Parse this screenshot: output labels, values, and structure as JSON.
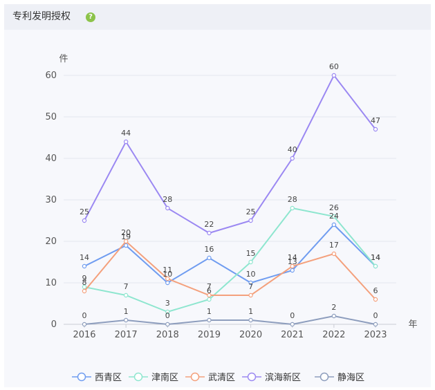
{
  "header": {
    "title": "专利发明授权",
    "help_icon": "question-icon",
    "help_glyph": "?"
  },
  "chart_data": {
    "type": "line",
    "title": "",
    "categories": [
      "2016",
      "2017",
      "2018",
      "2019",
      "2020",
      "2021",
      "2022",
      "2023"
    ],
    "xlabel": "年",
    "ylabel": "件",
    "ylim": [
      0,
      60
    ],
    "yticks": [
      0,
      10,
      20,
      30,
      40,
      50,
      60
    ],
    "grid": true,
    "legend_position": "bottom",
    "series": [
      {
        "name": "西青区",
        "color": "#6f9cf0",
        "values": [
          14,
          19,
          10,
          16,
          10,
          13,
          24,
          14
        ]
      },
      {
        "name": "津南区",
        "color": "#8ee6cf",
        "values": [
          9,
          7,
          3,
          6,
          15,
          28,
          26,
          14
        ]
      },
      {
        "name": "武清区",
        "color": "#f4a07c",
        "values": [
          8,
          20,
          11,
          7,
          7,
          14,
          17,
          6
        ]
      },
      {
        "name": "滨海新区",
        "color": "#9b88f2",
        "values": [
          25,
          44,
          28,
          22,
          25,
          40,
          60,
          47
        ]
      },
      {
        "name": "静海区",
        "color": "#8d9dbd",
        "values": [
          0,
          1,
          0,
          1,
          1,
          0,
          2,
          0
        ]
      }
    ]
  }
}
